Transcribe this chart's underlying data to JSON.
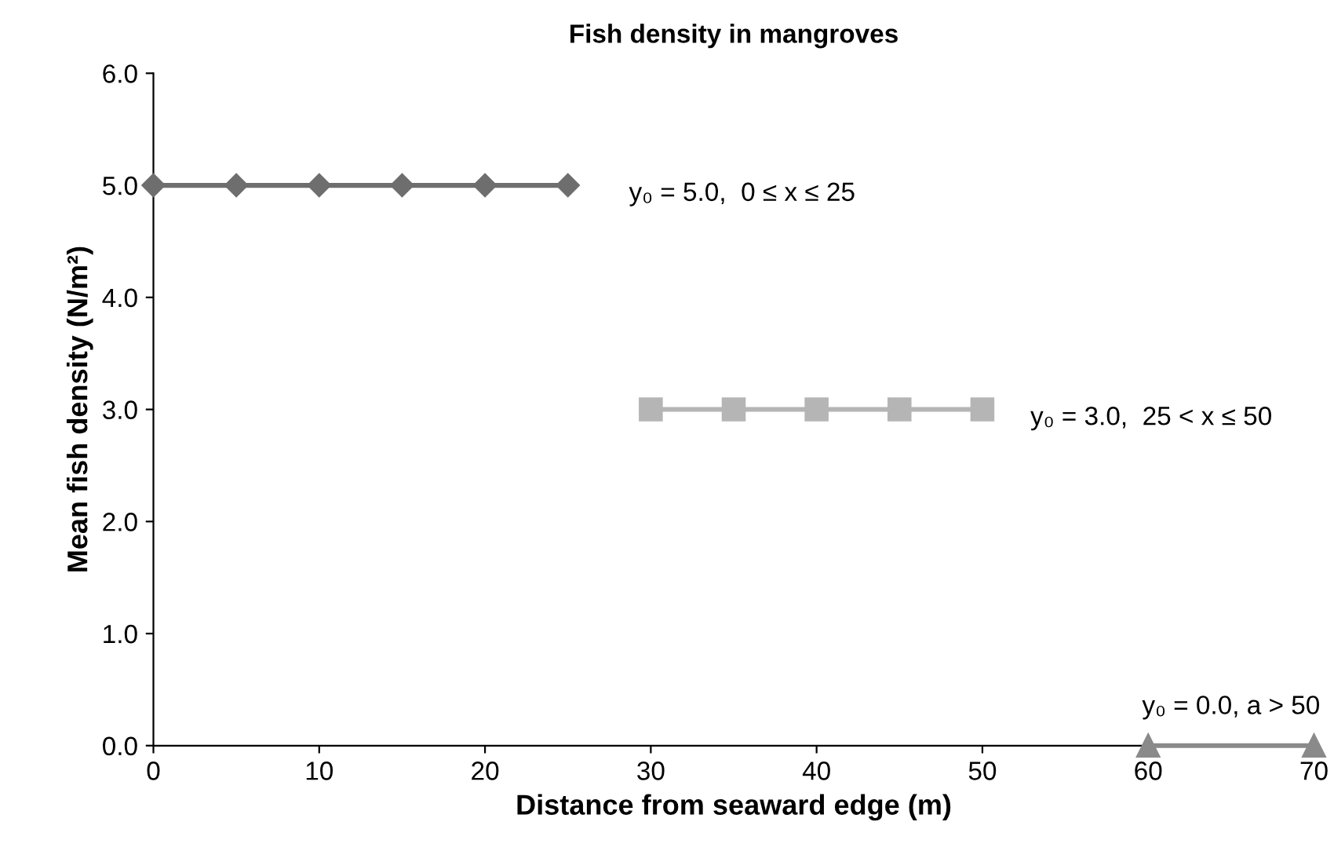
{
  "chart_data": {
    "type": "line",
    "title": "Fish density in mangroves",
    "xlabel": "Distance from seaward edge (m)",
    "ylabel": "Mean fish density (N/m²)",
    "series": [
      {
        "color": "#6e6e6e",
        "marker": "diamond",
        "x": [
          0,
          5,
          10,
          15,
          20,
          25
        ],
        "values": [
          5.0,
          5.0,
          5.0,
          5.0,
          5.0,
          5.0
        ]
      },
      {
        "color": "#b5b5b5",
        "marker": "square",
        "x": [
          30,
          35,
          40,
          45,
          50
        ],
        "values": [
          3.0,
          3.0,
          3.0,
          3.0,
          3.0
        ]
      },
      {
        "color": "#8a8a8a",
        "marker": "triangle",
        "x": [
          60,
          70
        ],
        "values": [
          0.0,
          0.0
        ]
      }
    ],
    "annotations": [
      {
        "text": "y₀ = 5.0,  0 ≤ x ≤ 25",
        "x": 25,
        "y": 5.0
      },
      {
        "text": "y₀ = 3.0,  25 < x ≤ 50",
        "x": 50,
        "y": 3.0
      },
      {
        "text": "y₀ = 0.0, a > 50",
        "x": 65,
        "y": 0.0
      }
    ],
    "xlim": [
      0,
      70
    ],
    "xticks": [
      0,
      10,
      20,
      30,
      40,
      50,
      60,
      70
    ],
    "ylim": [
      0,
      6
    ],
    "yticks": [
      {
        "value": 0,
        "label": "0.0"
      },
      {
        "value": 1,
        "label": "1.0"
      },
      {
        "value": 2,
        "label": "2.0"
      },
      {
        "value": 3,
        "label": "3.0"
      },
      {
        "value": 4,
        "label": "4.0"
      },
      {
        "value": 5,
        "label": "5.0"
      },
      {
        "value": 6,
        "label": "6.0"
      }
    ],
    "grid": false,
    "legend": false
  }
}
